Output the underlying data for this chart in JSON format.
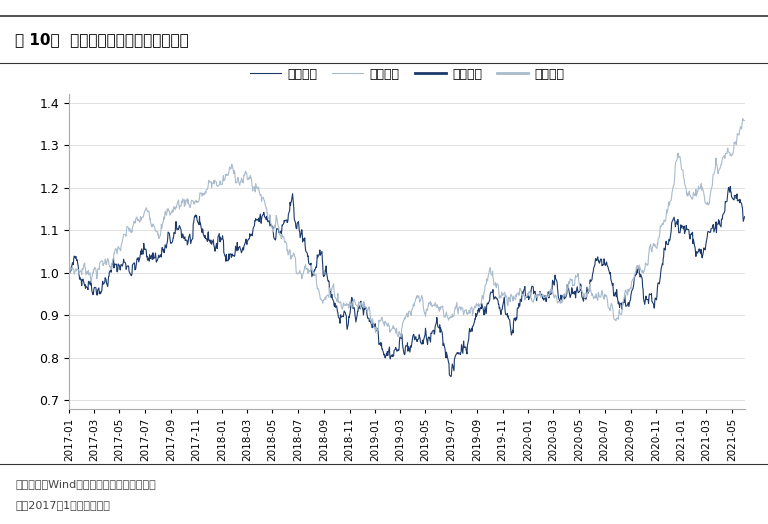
{
  "title": "图 10：  上证综指与国信价値指数走势",
  "legend_labels": [
    "上证综指",
    "国信价値",
    "上证综指",
    "国信价値"
  ],
  "ylabel_ticks": [
    0.7,
    0.8,
    0.9,
    1.0,
    1.1,
    1.2,
    1.3,
    1.4
  ],
  "ylim": [
    0.68,
    1.42
  ],
  "source_text": "数据来源：Wind、国信证券经济研究所整理",
  "note_text": "注：2017年1月初定基作图",
  "color_sh_dark": "#1B3A6B",
  "color_gx_light": "#A9BBCC",
  "background_color": "#FFFFFF",
  "title_color": "#000000",
  "footer_color": "#444444"
}
